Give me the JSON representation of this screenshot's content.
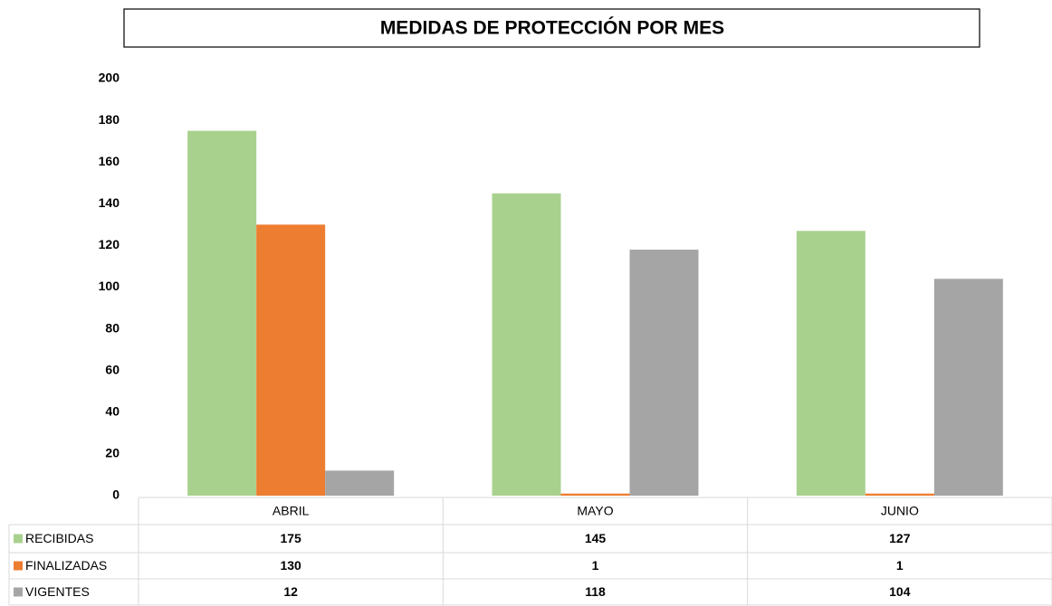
{
  "chart_data": {
    "type": "bar",
    "title": "MEDIDAS DE PROTECCIÓN POR MES",
    "categories": [
      "ABRIL",
      "MAYO",
      "JUNIO"
    ],
    "series": [
      {
        "name": "RECIBIDAS",
        "color": "#a9d18e",
        "values": [
          175,
          145,
          127
        ]
      },
      {
        "name": "FINALIZADAS",
        "color": "#ed7d31",
        "values": [
          130,
          1,
          1
        ]
      },
      {
        "name": "VIGENTES",
        "color": "#a5a5a5",
        "values": [
          12,
          118,
          104
        ]
      }
    ],
    "ylim": [
      0,
      200
    ],
    "yticks": [
      0,
      20,
      40,
      60,
      80,
      100,
      120,
      140,
      160,
      180,
      200
    ],
    "grid": false
  }
}
